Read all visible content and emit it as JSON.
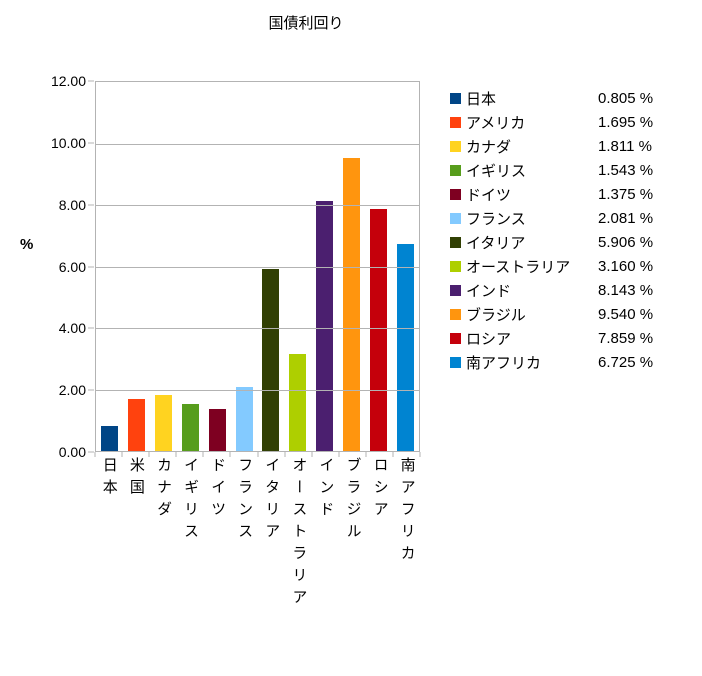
{
  "title": "国債利回り",
  "y_axis": {
    "label": "%",
    "min": 0,
    "max": 12,
    "step": 2,
    "tick_labels": [
      "12.00",
      "10.00",
      "8.00",
      "6.00",
      "4.00",
      "2.00",
      "0.00"
    ]
  },
  "chart_data": {
    "type": "bar",
    "title": "国債利回り",
    "xlabel": "",
    "ylabel": "%",
    "ylim": [
      0,
      12
    ],
    "grid": true,
    "legend_position": "right",
    "categories": [
      "日本",
      "米国",
      "カナダ",
      "イギリス",
      "ドイツ",
      "フランス",
      "イタリア",
      "オーストラリア",
      "インド",
      "ブラジル",
      "ロシア",
      "南アフリカ"
    ],
    "values": [
      0.805,
      1.695,
      1.811,
      1.543,
      1.375,
      2.081,
      5.906,
      3.16,
      8.143,
      9.54,
      7.859,
      6.725
    ],
    "colors": [
      "#004586",
      "#FF420E",
      "#FFD320",
      "#579D1C",
      "#7E0021",
      "#83CAFF",
      "#314004",
      "#AECF00",
      "#4B1F6F",
      "#FF950E",
      "#C5000B",
      "#0084D1"
    ]
  },
  "legend": {
    "items": [
      {
        "name": "日本",
        "label": "0.805 %"
      },
      {
        "name": "アメリカ",
        "label": "1.695 %"
      },
      {
        "name": "カナダ",
        "label": "1.811 %"
      },
      {
        "name": "イギリス",
        "label": "1.543 %"
      },
      {
        "name": "ドイツ",
        "label": "1.375 %"
      },
      {
        "name": "フランス",
        "label": "2.081 %"
      },
      {
        "name": "イタリア",
        "label": "5.906 %"
      },
      {
        "name": "オーストラリア",
        "label": "3.160 %"
      },
      {
        "name": "インド",
        "label": "8.143 %"
      },
      {
        "name": "ブラジル",
        "label": "9.540 %"
      },
      {
        "name": "ロシア",
        "label": "7.859 %"
      },
      {
        "name": "南アフリカ",
        "label": "6.725 %"
      }
    ]
  }
}
